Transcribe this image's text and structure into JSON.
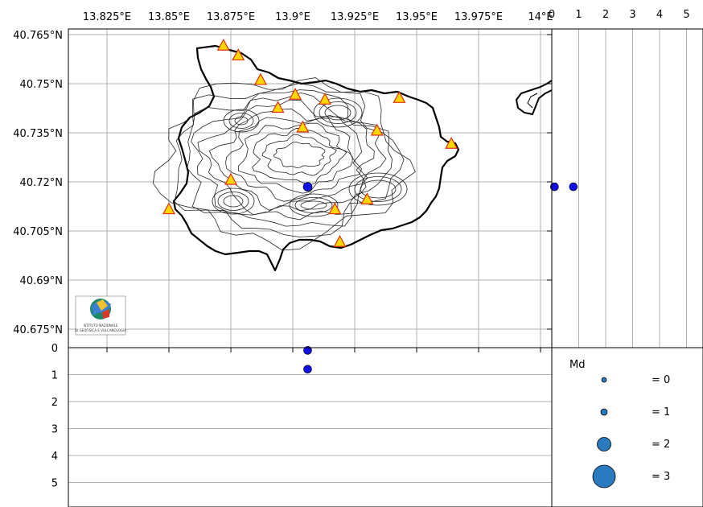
{
  "map": {
    "lon_ticks": [
      "13.825°E",
      "13.85°E",
      "13.875°E",
      "13.9°E",
      "13.925°E",
      "13.95°E",
      "13.975°E",
      "14°E"
    ],
    "lat_ticks": [
      "40.765°N",
      "40.75°N",
      "40.735°N",
      "40.72°N",
      "40.705°N",
      "40.69°N",
      "40.675°N"
    ],
    "lon_values": [
      13.825,
      13.85,
      13.875,
      13.9,
      13.925,
      13.95,
      13.975,
      14.0
    ],
    "lat_values": [
      40.765,
      40.75,
      40.735,
      40.72,
      40.705,
      40.69,
      40.675
    ],
    "feature": "Ischia island coastline with topographic contours",
    "station_marker": "yellow triangle with red outline",
    "event_marker": "blue circle",
    "colors": {
      "station_fill": "#ffd700",
      "station_edge": "#e03010",
      "event": "#1010e0",
      "legend_circle": "#2a7abf",
      "grid": "#b0b0b0",
      "coast": "#000000"
    },
    "logo_text": "ISTITUTO NAZIONALE DI GEOFISICA E VULCANOLOGIA"
  },
  "depth_right": {
    "ticks": [
      "0",
      "1",
      "2",
      "3",
      "4",
      "5"
    ],
    "values": [
      0,
      1,
      2,
      3,
      4,
      5
    ]
  },
  "depth_bottom": {
    "ticks": [
      "0",
      "1",
      "2",
      "3",
      "4",
      "5"
    ],
    "values": [
      0,
      1,
      2,
      3,
      4,
      5
    ]
  },
  "legend": {
    "title": "Md",
    "items": [
      {
        "label": "= 0",
        "magnitude": 0
      },
      {
        "label": "= 1",
        "magnitude": 1
      },
      {
        "label": "= 2",
        "magnitude": 2
      },
      {
        "label": "= 3",
        "magnitude": 3
      }
    ]
  },
  "chart_data": {
    "type": "scatter",
    "stations": [
      {
        "lon": 13.872,
        "lat": 40.7615
      },
      {
        "lon": 13.878,
        "lat": 40.7585
      },
      {
        "lon": 13.887,
        "lat": 40.751
      },
      {
        "lon": 13.901,
        "lat": 40.7465
      },
      {
        "lon": 13.913,
        "lat": 40.745
      },
      {
        "lon": 13.894,
        "lat": 40.7425
      },
      {
        "lon": 13.904,
        "lat": 40.7365
      },
      {
        "lon": 13.934,
        "lat": 40.7355
      },
      {
        "lon": 13.943,
        "lat": 40.7455
      },
      {
        "lon": 13.964,
        "lat": 40.7315
      },
      {
        "lon": 13.875,
        "lat": 40.7205
      },
      {
        "lon": 13.93,
        "lat": 40.7145
      },
      {
        "lon": 13.917,
        "lat": 40.7115
      },
      {
        "lon": 13.85,
        "lat": 40.7115
      },
      {
        "lon": 13.919,
        "lat": 40.7015
      }
    ],
    "events": [
      {
        "lon": 13.906,
        "lat": 40.7185,
        "depth_km": [
          0.1,
          0.8
        ]
      }
    ],
    "depth_range_km": [
      0,
      5.8
    ]
  }
}
